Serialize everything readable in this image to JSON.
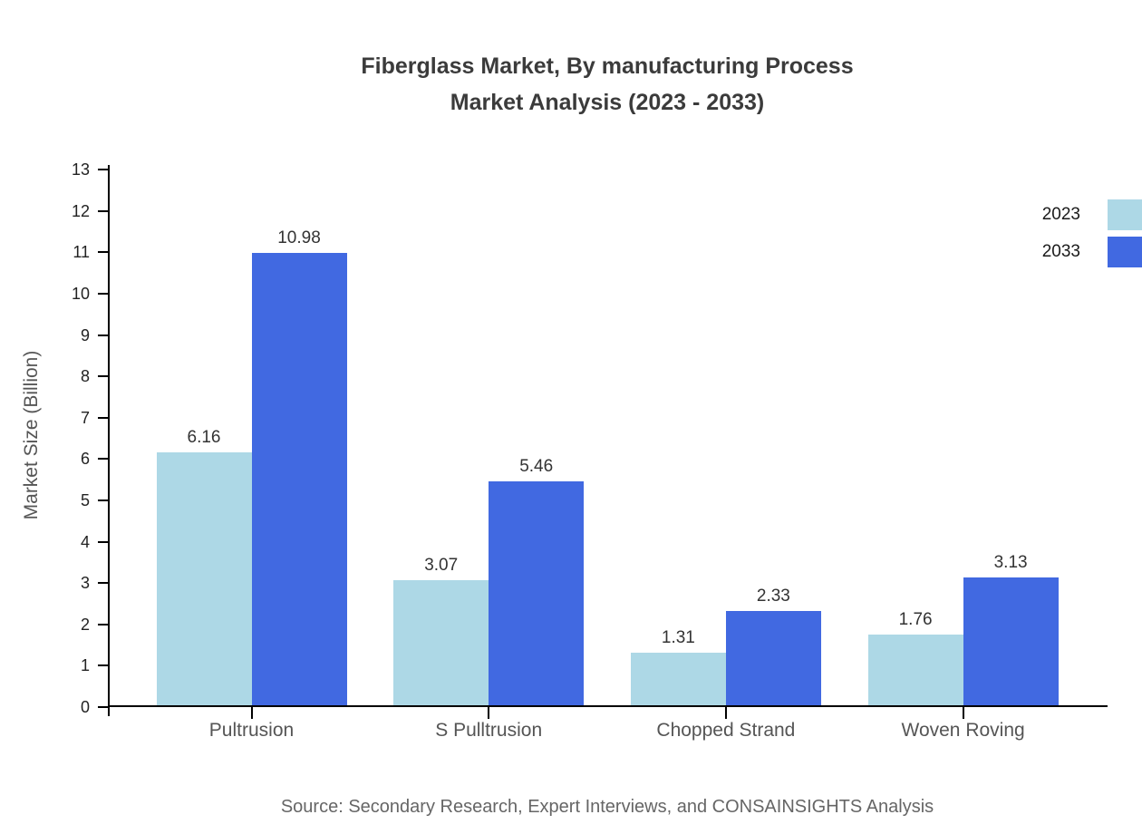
{
  "header": {
    "title_line1": "Fiberglass Market, By manufacturing Process",
    "title_line2": "Market Analysis (2023 - 2033)"
  },
  "footer": {
    "source": "Source: Secondary Research, Expert Interviews, and CONSAINSIGHTS Analysis"
  },
  "colors": {
    "series_2023": "#ADD8E6",
    "series_2033": "#4169E1",
    "axis": "#000000",
    "title_text": "#3B3B3B",
    "category_text": "#555555",
    "source_text": "#666666"
  },
  "chart_data": {
    "type": "bar",
    "title": "Fiberglass Market, By manufacturing Process Market Analysis (2023 - 2033)",
    "categories": [
      "Pultrusion",
      "S Pulltrusion",
      "Chopped Strand",
      "Woven Roving"
    ],
    "series": [
      {
        "name": "2023",
        "color": "#ADD8E6",
        "values": [
          6.16,
          3.07,
          1.31,
          1.76
        ]
      },
      {
        "name": "2033",
        "color": "#4169E1",
        "values": [
          10.98,
          5.46,
          2.33,
          3.13
        ]
      }
    ],
    "xlabel": "",
    "ylabel": "Market Size (Billion)",
    "ylim": [
      0,
      13
    ],
    "yticks": [
      0,
      1,
      2,
      3,
      4,
      5,
      6,
      7,
      8,
      9,
      10,
      11,
      12,
      13
    ],
    "grid": false,
    "value_labels": true,
    "legend_position": "top-right"
  }
}
